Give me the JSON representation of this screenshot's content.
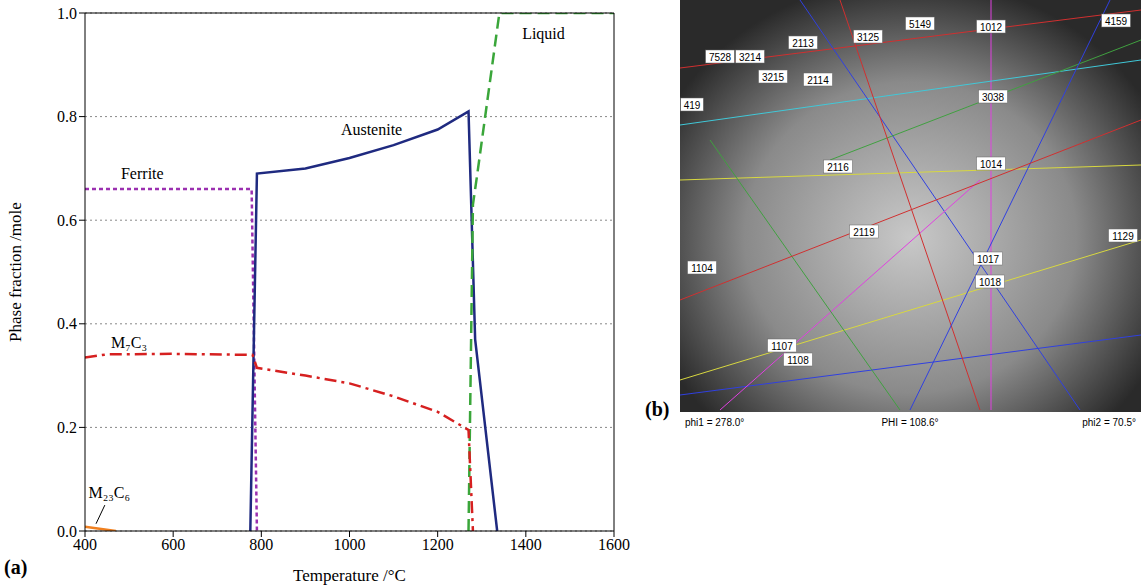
{
  "chart_data": {
    "type": "line",
    "panel": "(a)",
    "x_label": "Temperature /°C",
    "y_label": "Phase fraction /mole",
    "xlim": [
      400,
      1600
    ],
    "xticks": [
      400,
      600,
      800,
      1000,
      1200,
      1400,
      1600
    ],
    "ylim": [
      0,
      1
    ],
    "yticks": [
      {
        "value": 0,
        "label": "0.0"
      },
      0.2,
      0.4,
      0.6,
      0.8,
      {
        "value": 1,
        "label": "1.0"
      }
    ],
    "grid": true,
    "series": [
      {
        "name": "Ferrite",
        "color": "#9b30b0",
        "line_style": "dotted",
        "x": [
          400,
          778,
          790
        ],
        "values": [
          0.66,
          0.66,
          0
        ]
      },
      {
        "name": "Austenite",
        "color": "#1f2a80",
        "line_style": "solid",
        "x": [
          775,
          790,
          900,
          1000,
          1100,
          1200,
          1270,
          1285,
          1335
        ],
        "values": [
          0,
          0.69,
          0.7,
          0.72,
          0.745,
          0.775,
          0.81,
          0.37,
          0
        ]
      },
      {
        "name": "Liquid",
        "color": "#3aa63a",
        "line_style": "dashed",
        "x": [
          1270,
          1280,
          1290,
          1340,
          1600
        ],
        "values": [
          0,
          0.63,
          0.69,
          1,
          1
        ]
      },
      {
        "name": "M₇C₃",
        "color": "#d62020",
        "line_style": "dashdot",
        "x": [
          400,
          450,
          600,
          780,
          790,
          900,
          1000,
          1100,
          1200,
          1270,
          1280
        ],
        "values": [
          0.335,
          0.341,
          0.342,
          0.34,
          0.315,
          0.3,
          0.285,
          0.26,
          0.23,
          0.195,
          0
        ]
      },
      {
        "name": "M₂₃C₆",
        "color": "#f08020",
        "line_style": "solid",
        "x": [
          400,
          470
        ],
        "values": [
          0.008,
          0
        ]
      }
    ]
  },
  "pattern": {
    "panel": "(b)",
    "band_labels": [
      "7528",
      "3214",
      "2113",
      "3125",
      "5149",
      "1012",
      "4159",
      "3215",
      "2114",
      "3038",
      "419",
      "2116",
      "1014",
      "2119",
      "1129",
      "1104",
      "1017",
      "1018",
      "1107",
      "1108"
    ],
    "angles": [
      "phi1 = 278.0°",
      "PHI = 108.6°",
      "phi2 = 70.5°"
    ]
  }
}
